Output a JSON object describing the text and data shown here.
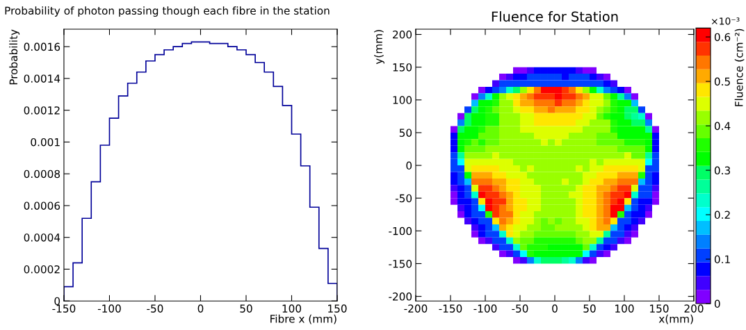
{
  "chart_data": [
    {
      "type": "histogram",
      "title": "Probability of photon passing though each fibre in the station",
      "xlabel": "Fibre x (mm)",
      "ylabel": "Probability",
      "color": "#000099",
      "bins": [
        -150,
        -140,
        -130,
        -120,
        -110,
        -100,
        -90,
        -80,
        -70,
        -60,
        -50,
        -40,
        -30,
        -20,
        -10,
        0,
        10,
        20,
        30,
        40,
        50,
        60,
        70,
        80,
        90,
        100,
        110,
        120,
        130,
        140,
        150
      ],
      "values": [
        9e-05,
        0.00024,
        0.00052,
        0.00075,
        0.00098,
        0.00115,
        0.00129,
        0.00137,
        0.00144,
        0.00151,
        0.00155,
        0.00158,
        0.0016,
        0.00162,
        0.00163,
        0.00163,
        0.00162,
        0.00162,
        0.0016,
        0.00158,
        0.00155,
        0.0015,
        0.00144,
        0.00135,
        0.00123,
        0.00105,
        0.00085,
        0.00059,
        0.00033,
        0.00011
      ],
      "xlim": [
        -150,
        150
      ],
      "xticks": [
        -150,
        -100,
        -50,
        0,
        50,
        100,
        150
      ],
      "ylim": [
        0,
        0.00171
      ],
      "yticks": [
        0,
        0.0002,
        0.0004,
        0.0006,
        0.0008,
        0.001,
        0.0012,
        0.0014,
        0.0016
      ]
    },
    {
      "type": "heatmap",
      "title": "Fluence for Station",
      "xlabel": "x(mm)",
      "ylabel": "y(mm)",
      "clabel": "Fluence (cm⁻²)",
      "annotations": [
        "×10⁻³"
      ],
      "x": [
        -145,
        -135,
        -125,
        -115,
        -105,
        -95,
        -85,
        -75,
        -65,
        -55,
        -45,
        -35,
        -25,
        -15,
        -5,
        5,
        15,
        25,
        35,
        45,
        55,
        65,
        75,
        85,
        95,
        105,
        115,
        125,
        135,
        145
      ],
      "y": [
        145,
        135,
        125,
        115,
        105,
        95,
        85,
        75,
        65,
        55,
        45,
        35,
        25,
        15,
        5,
        -5,
        -15,
        -25,
        -35,
        -45,
        -55,
        -65,
        -75,
        -85,
        -95,
        -105,
        -115,
        -125,
        -135,
        -145
      ],
      "colors": [
        "#8000ff",
        "#4000ff",
        "#0000ff",
        "#0040ff",
        "#0080ff",
        "#00bfff",
        "#00ffff",
        "#00ffcc",
        "#00ff99",
        "#00ff66",
        "#00ff00",
        "#20ff00",
        "#66ff00",
        "#99ff00",
        "#ddff00",
        "#ffe600",
        "#ffaa00",
        "#ff7700",
        "#ff3300",
        "#ff0000"
      ],
      "clim": [
        0,
        0.62
      ],
      "cticks": [
        0,
        0.1,
        0.2,
        0.3,
        0.4,
        0.5,
        0.6
      ],
      "xlim": [
        -200,
        200
      ],
      "xticks": [
        -200,
        -150,
        -100,
        -50,
        0,
        50,
        100,
        150,
        200
      ],
      "ylim": [
        -207,
        208
      ],
      "yticks": [
        -200,
        -150,
        -100,
        -50,
        0,
        50,
        100,
        150,
        200
      ],
      "cells": [
        [
          null,
          null,
          null,
          null,
          null,
          null,
          null,
          null,
          null,
          0.02,
          0.02,
          0.05,
          0.08,
          0.08,
          0.08,
          0.08,
          0.08,
          0.08,
          0.05,
          0.02,
          0.02,
          null,
          null,
          null,
          null,
          null,
          null,
          null,
          null,
          null
        ],
        [
          null,
          null,
          null,
          null,
          null,
          null,
          null,
          0.02,
          0.05,
          0.08,
          0.08,
          0.11,
          0.11,
          0.11,
          0.11,
          0.11,
          0.08,
          0.11,
          0.11,
          0.11,
          0.08,
          0.05,
          0.02,
          null,
          null,
          null,
          null,
          null,
          null,
          null
        ],
        [
          null,
          null,
          null,
          null,
          null,
          null,
          0.05,
          0.11,
          0.11,
          0.11,
          0.11,
          0.11,
          0.11,
          0.11,
          0.11,
          0.11,
          0.11,
          0.11,
          0.11,
          0.11,
          0.11,
          0.11,
          0.08,
          0.05,
          null,
          null,
          null,
          null,
          null,
          null
        ],
        [
          null,
          null,
          null,
          null,
          0.02,
          0.08,
          0.11,
          0.14,
          0.23,
          0.3,
          0.42,
          0.48,
          0.54,
          0.6,
          0.6,
          0.6,
          0.57,
          0.54,
          0.48,
          0.42,
          0.33,
          0.23,
          0.14,
          0.11,
          0.08,
          0.02,
          null,
          null,
          null,
          null
        ],
        [
          null,
          null,
          null,
          0.02,
          0.14,
          0.23,
          0.33,
          0.42,
          0.45,
          0.48,
          0.51,
          0.54,
          0.57,
          0.57,
          0.57,
          0.6,
          0.57,
          0.57,
          0.54,
          0.51,
          0.45,
          0.45,
          0.39,
          0.33,
          0.26,
          0.14,
          0.02,
          null,
          null,
          null
        ],
        [
          null,
          null,
          null,
          0.17,
          0.33,
          0.33,
          0.36,
          0.42,
          0.42,
          0.48,
          0.51,
          0.51,
          0.54,
          0.54,
          0.54,
          0.57,
          0.54,
          0.54,
          0.51,
          0.48,
          0.45,
          0.45,
          0.42,
          0.36,
          0.33,
          0.33,
          0.17,
          null,
          null,
          null
        ],
        [
          null,
          null,
          0.11,
          0.3,
          0.33,
          0.36,
          0.39,
          0.42,
          0.42,
          0.45,
          0.48,
          0.48,
          0.51,
          0.51,
          0.54,
          0.51,
          0.51,
          0.51,
          0.48,
          0.48,
          0.45,
          0.42,
          0.39,
          0.36,
          0.33,
          0.3,
          0.3,
          0.11,
          null,
          null
        ],
        [
          null,
          0.02,
          0.3,
          0.33,
          0.33,
          0.36,
          0.36,
          0.42,
          0.42,
          0.42,
          0.45,
          0.45,
          0.48,
          0.48,
          0.48,
          0.48,
          0.48,
          0.48,
          0.48,
          0.45,
          0.45,
          0.39,
          0.36,
          0.33,
          0.33,
          0.3,
          0.26,
          0.23,
          0.02,
          null
        ],
        [
          null,
          0.14,
          0.3,
          0.33,
          0.33,
          0.36,
          0.36,
          0.42,
          0.42,
          0.42,
          0.45,
          0.45,
          0.48,
          0.48,
          0.48,
          0.48,
          0.48,
          0.48,
          0.45,
          0.45,
          0.42,
          0.42,
          0.42,
          0.36,
          0.33,
          0.33,
          0.3,
          0.3,
          0.14,
          null
        ],
        [
          0.02,
          0.3,
          0.33,
          0.33,
          0.36,
          0.39,
          0.39,
          0.42,
          0.42,
          0.42,
          0.45,
          0.45,
          0.45,
          0.45,
          0.45,
          0.45,
          0.45,
          0.45,
          0.45,
          0.42,
          0.42,
          0.42,
          0.42,
          0.36,
          0.33,
          0.33,
          0.33,
          0.33,
          0.26,
          0.02
        ],
        [
          0.08,
          0.33,
          0.33,
          0.33,
          0.39,
          0.39,
          0.39,
          0.42,
          0.42,
          0.42,
          0.42,
          0.42,
          0.45,
          0.45,
          0.45,
          0.45,
          0.45,
          0.42,
          0.42,
          0.42,
          0.42,
          0.39,
          0.39,
          0.39,
          0.33,
          0.33,
          0.33,
          0.33,
          0.33,
          0.08
        ],
        [
          0.08,
          0.33,
          0.36,
          0.39,
          0.36,
          0.39,
          0.39,
          0.42,
          0.42,
          0.42,
          0.42,
          0.42,
          0.42,
          0.45,
          0.42,
          0.45,
          0.42,
          0.42,
          0.42,
          0.42,
          0.42,
          0.39,
          0.39,
          0.39,
          0.39,
          0.36,
          0.36,
          0.36,
          0.33,
          0.08
        ],
        [
          0.08,
          0.33,
          0.39,
          0.39,
          0.39,
          0.42,
          0.42,
          0.42,
          0.42,
          0.42,
          0.42,
          0.42,
          0.42,
          0.42,
          0.42,
          0.42,
          0.42,
          0.42,
          0.42,
          0.42,
          0.42,
          0.42,
          0.42,
          0.42,
          0.39,
          0.39,
          0.39,
          0.39,
          0.33,
          0.08
        ],
        [
          0.11,
          0.26,
          0.42,
          0.42,
          0.42,
          0.42,
          0.45,
          0.42,
          0.42,
          0.42,
          0.42,
          0.42,
          0.42,
          0.42,
          0.42,
          0.42,
          0.42,
          0.42,
          0.42,
          0.42,
          0.42,
          0.42,
          0.42,
          0.42,
          0.42,
          0.45,
          0.39,
          0.39,
          0.26,
          0.11
        ],
        [
          0.11,
          0.2,
          0.45,
          0.45,
          0.45,
          0.45,
          0.45,
          0.45,
          0.45,
          0.42,
          0.42,
          0.42,
          0.42,
          0.42,
          0.42,
          0.42,
          0.42,
          0.42,
          0.42,
          0.42,
          0.45,
          0.42,
          0.45,
          0.45,
          0.45,
          0.45,
          0.45,
          0.45,
          0.2,
          0.11
        ],
        [
          0.11,
          0.11,
          0.45,
          0.48,
          0.48,
          0.48,
          0.48,
          0.45,
          0.45,
          0.45,
          0.42,
          0.45,
          0.42,
          0.42,
          0.42,
          0.42,
          0.42,
          0.42,
          0.45,
          0.42,
          0.45,
          0.45,
          0.48,
          0.48,
          0.48,
          0.48,
          0.48,
          0.45,
          0.11,
          0.11
        ],
        [
          0.08,
          0.11,
          0.33,
          0.51,
          0.51,
          0.51,
          0.48,
          0.48,
          0.45,
          0.45,
          0.45,
          0.42,
          0.42,
          0.42,
          0.42,
          0.42,
          0.42,
          0.42,
          0.42,
          0.45,
          0.45,
          0.48,
          0.48,
          0.48,
          0.51,
          0.51,
          0.51,
          0.36,
          0.11,
          0.08
        ],
        [
          0.08,
          0.11,
          0.17,
          0.54,
          0.54,
          0.54,
          0.51,
          0.51,
          0.48,
          0.48,
          0.45,
          0.45,
          0.42,
          0.42,
          0.42,
          0.42,
          0.45,
          0.42,
          0.42,
          0.45,
          0.48,
          0.48,
          0.51,
          0.51,
          0.54,
          0.54,
          0.54,
          0.17,
          0.11,
          0.08
        ],
        [
          0.05,
          0.08,
          0.11,
          0.45,
          0.57,
          0.57,
          0.54,
          0.51,
          0.48,
          0.48,
          0.45,
          0.45,
          0.45,
          0.42,
          0.42,
          0.42,
          0.42,
          0.42,
          0.45,
          0.48,
          0.48,
          0.51,
          0.51,
          0.54,
          0.57,
          0.57,
          0.45,
          0.11,
          0.11,
          0.05
        ],
        [
          0.02,
          0.08,
          0.11,
          0.23,
          0.6,
          0.57,
          0.57,
          0.54,
          0.51,
          0.48,
          0.45,
          0.45,
          0.45,
          0.42,
          0.42,
          0.42,
          0.42,
          0.45,
          0.45,
          0.48,
          0.48,
          0.51,
          0.54,
          0.57,
          0.57,
          0.6,
          0.23,
          0.11,
          0.11,
          0.02
        ],
        [
          0.02,
          0.08,
          0.08,
          0.11,
          0.48,
          0.6,
          0.57,
          0.57,
          0.51,
          0.48,
          0.48,
          0.45,
          0.45,
          0.42,
          0.42,
          0.42,
          0.42,
          0.42,
          0.45,
          0.48,
          0.48,
          0.51,
          0.54,
          0.57,
          0.6,
          0.48,
          0.11,
          0.08,
          0.08,
          0.02
        ],
        [
          null,
          0.05,
          0.08,
          0.11,
          0.2,
          0.6,
          0.57,
          0.54,
          0.51,
          0.48,
          0.48,
          0.45,
          0.45,
          0.42,
          0.42,
          0.42,
          0.42,
          0.42,
          0.45,
          0.48,
          0.48,
          0.51,
          0.54,
          0.6,
          0.6,
          0.17,
          0.11,
          0.08,
          0.05,
          null
        ],
        [
          null,
          0.02,
          0.08,
          0.11,
          0.11,
          0.36,
          0.57,
          0.54,
          0.54,
          0.48,
          0.45,
          0.45,
          0.42,
          0.42,
          0.42,
          0.42,
          0.42,
          0.42,
          0.45,
          0.48,
          0.48,
          0.51,
          0.54,
          0.6,
          0.36,
          0.11,
          0.08,
          0.08,
          0.02,
          null
        ],
        [
          null,
          null,
          0.05,
          0.08,
          0.11,
          0.11,
          0.48,
          0.54,
          0.51,
          0.48,
          0.45,
          0.45,
          0.42,
          0.39,
          0.42,
          0.39,
          0.42,
          0.42,
          0.45,
          0.45,
          0.48,
          0.51,
          0.54,
          0.48,
          0.11,
          0.11,
          0.08,
          0.05,
          null,
          null
        ],
        [
          null,
          null,
          null,
          0.05,
          0.08,
          0.11,
          0.17,
          0.51,
          0.48,
          0.45,
          0.45,
          0.42,
          0.42,
          0.39,
          0.39,
          0.42,
          0.42,
          0.42,
          0.42,
          0.45,
          0.48,
          0.51,
          0.51,
          0.17,
          0.11,
          0.08,
          0.05,
          null,
          null,
          null
        ],
        [
          null,
          null,
          null,
          0.02,
          0.08,
          0.11,
          0.11,
          0.23,
          0.48,
          0.45,
          0.42,
          0.42,
          0.39,
          0.39,
          0.39,
          0.39,
          0.39,
          0.39,
          0.42,
          0.42,
          0.45,
          0.45,
          0.26,
          0.11,
          0.11,
          0.05,
          0.02,
          null,
          null,
          null
        ],
        [
          null,
          null,
          null,
          null,
          0.02,
          0.05,
          0.11,
          0.11,
          0.23,
          0.42,
          0.39,
          0.39,
          0.36,
          0.36,
          0.36,
          0.36,
          0.36,
          0.36,
          0.39,
          0.42,
          0.42,
          0.26,
          0.11,
          0.11,
          0.05,
          0.02,
          null,
          null,
          null,
          null
        ],
        [
          null,
          null,
          null,
          null,
          null,
          null,
          0.05,
          0.11,
          0.11,
          0.23,
          0.39,
          0.36,
          0.36,
          0.36,
          0.33,
          0.33,
          0.33,
          0.33,
          0.33,
          0.39,
          0.23,
          0.11,
          0.08,
          0.05,
          null,
          null,
          null,
          null,
          null,
          null
        ],
        [
          null,
          null,
          null,
          null,
          null,
          null,
          null,
          0.02,
          0.05,
          0.11,
          0.2,
          0.36,
          0.33,
          0.33,
          0.33,
          0.33,
          0.33,
          0.33,
          0.33,
          0.2,
          0.11,
          0.05,
          0.02,
          null,
          null,
          null,
          null,
          null,
          null,
          null
        ],
        [
          null,
          null,
          null,
          null,
          null,
          null,
          null,
          null,
          null,
          0.02,
          0.05,
          0.14,
          0.23,
          0.3,
          0.3,
          0.3,
          0.26,
          0.23,
          0.14,
          0.05,
          0.02,
          null,
          null,
          null,
          null,
          null,
          null,
          null,
          null,
          null
        ]
      ]
    }
  ]
}
